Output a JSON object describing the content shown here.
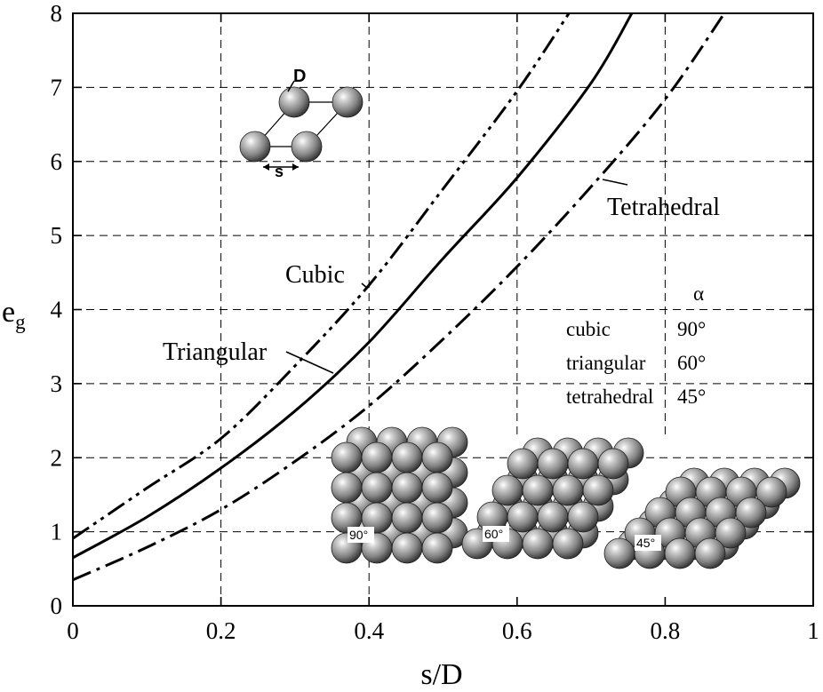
{
  "chart_data": {
    "type": "line",
    "xlabel": "s/D",
    "ylabel": "e",
    "ylabel_sub": "g",
    "xlim": [
      0,
      1
    ],
    "ylim": [
      0,
      8
    ],
    "x_ticks": [
      "0",
      "0.2",
      "0.4",
      "0.6",
      "0.8",
      "1"
    ],
    "y_ticks": [
      "0",
      "1",
      "2",
      "3",
      "4",
      "5",
      "6",
      "7",
      "8"
    ],
    "grid": true,
    "series": [
      {
        "name": "Cubic",
        "line_style": "dash-dot-dot",
        "x": [
          0,
          0.1,
          0.2,
          0.3,
          0.4,
          0.5,
          0.6,
          0.67
        ],
        "y": [
          0.91,
          1.59,
          2.26,
          3.24,
          4.33,
          5.63,
          6.95,
          8.0
        ]
      },
      {
        "name": "Triangular",
        "line_style": "solid",
        "x": [
          0,
          0.1,
          0.2,
          0.3,
          0.4,
          0.5,
          0.6,
          0.7,
          0.755
        ],
        "y": [
          0.65,
          1.2,
          1.86,
          2.63,
          3.56,
          4.69,
          5.78,
          7.06,
          8.0
        ]
      },
      {
        "name": "Tetrahedral",
        "line_style": "dash-dot",
        "x": [
          0,
          0.1,
          0.2,
          0.3,
          0.4,
          0.5,
          0.6,
          0.7,
          0.8,
          0.88
        ],
        "y": [
          0.35,
          0.79,
          1.3,
          1.95,
          2.7,
          3.6,
          4.58,
          5.66,
          6.84,
          8.0
        ]
      }
    ],
    "annotations": {
      "curve_labels": [
        "Cubic",
        "Triangular",
        "Tetrahedral"
      ],
      "alpha_header": "α",
      "alpha_table": [
        {
          "name": "cubic",
          "angle": "90°"
        },
        {
          "name": "triangular",
          "angle": "60°"
        },
        {
          "name": "tetrahedral",
          "angle": "45°"
        }
      ],
      "inset_labels": {
        "diameter": "D",
        "spacing": "s"
      },
      "packing_angles": [
        "90°",
        "60°",
        "45°"
      ]
    }
  }
}
